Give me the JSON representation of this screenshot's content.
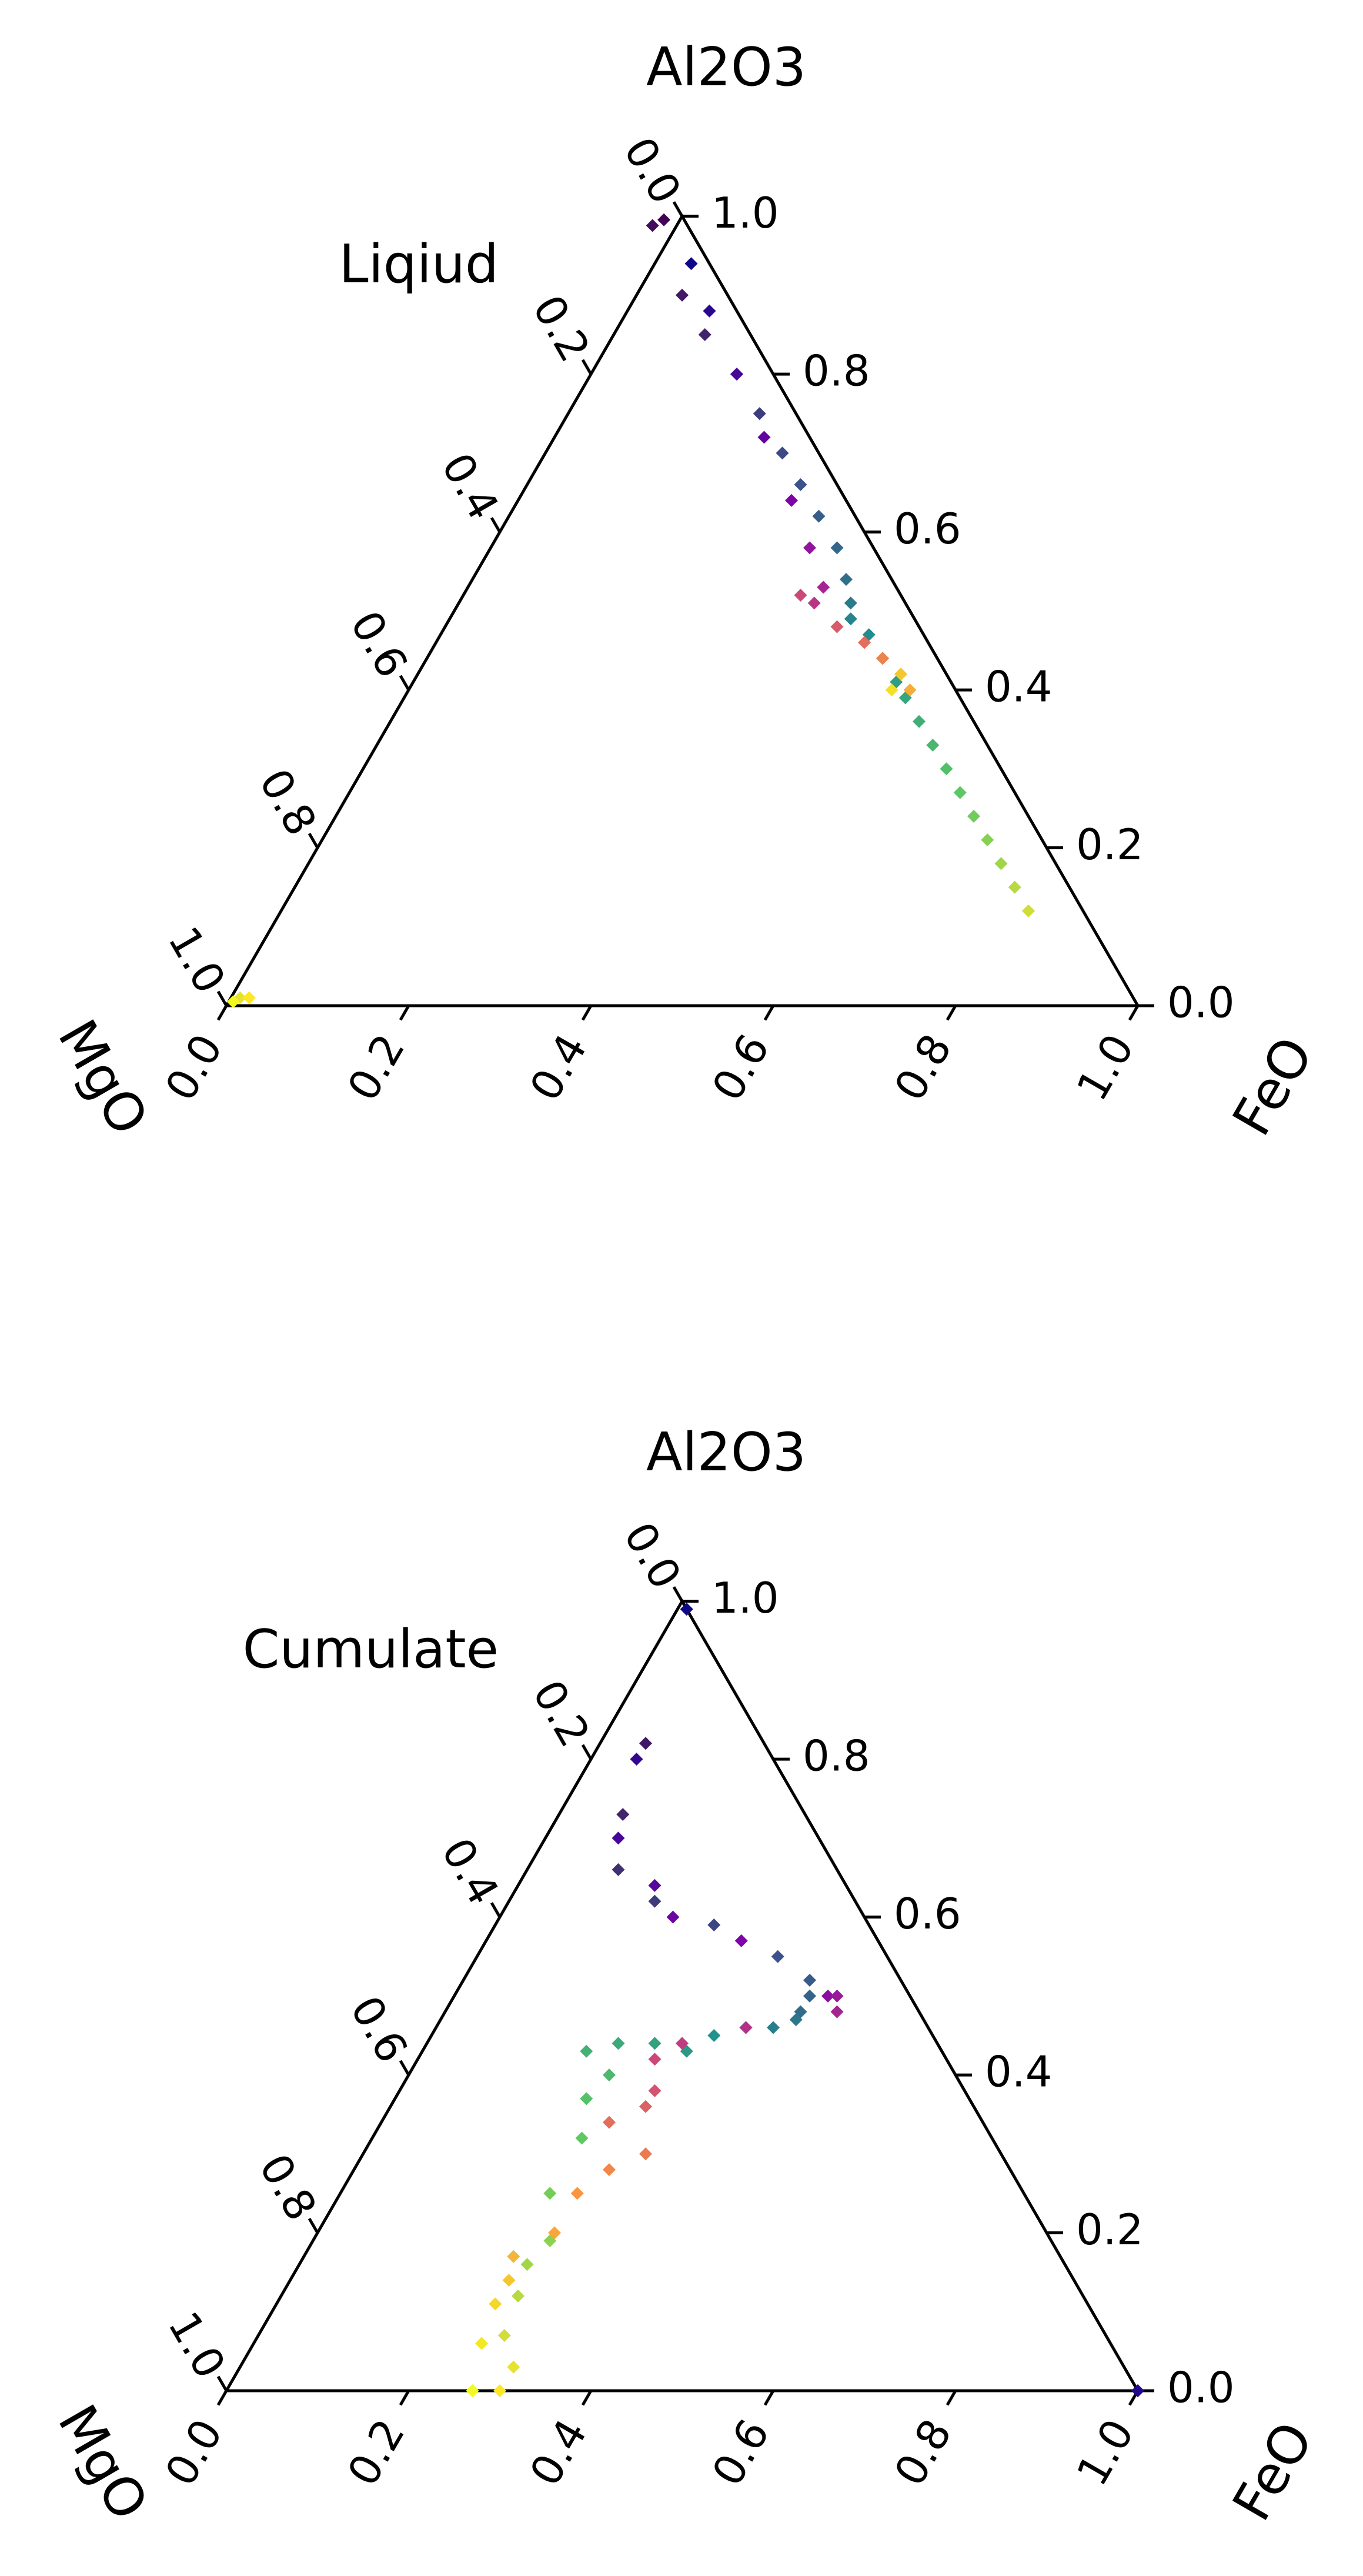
{
  "chart_data": [
    {
      "type": "scatter",
      "title": "Al2O3",
      "annotation": "Liqiud",
      "axis_labels": {
        "top": "Al2O3",
        "left": "MgO",
        "right": "FeO"
      },
      "tick_labels": [
        "0.0",
        "0.2",
        "0.4",
        "0.6",
        "0.8",
        "1.0"
      ],
      "colormaps": [
        "viridis",
        "plasma"
      ],
      "series": [
        {
          "colormap": "viridis",
          "points": [
            [
              0.01,
              0.97,
              0.0
            ],
            [
              0.02,
              0.95,
              0.0
            ],
            [
              0.05,
              0.9,
              0.05
            ],
            [
              0.05,
              0.85,
              0.1
            ],
            [
              0.04,
              0.8,
              0.16
            ],
            [
              0.04,
              0.75,
              0.21
            ],
            [
              0.04,
              0.7,
              0.26
            ],
            [
              0.04,
              0.66,
              0.3
            ],
            [
              0.04,
              0.62,
              0.34
            ],
            [
              0.04,
              0.58,
              0.38
            ],
            [
              0.05,
              0.54,
              0.41
            ],
            [
              0.06,
              0.51,
              0.43
            ],
            [
              0.07,
              0.49,
              0.44
            ],
            [
              0.06,
              0.47,
              0.47
            ],
            [
              0.06,
              0.44,
              0.5
            ],
            [
              0.06,
              0.41,
              0.53
            ],
            [
              0.06,
              0.39,
              0.55
            ],
            [
              0.06,
              0.36,
              0.58
            ],
            [
              0.06,
              0.33,
              0.61
            ],
            [
              0.06,
              0.3,
              0.64
            ],
            [
              0.06,
              0.27,
              0.67
            ],
            [
              0.06,
              0.24,
              0.7
            ],
            [
              0.06,
              0.21,
              0.73
            ],
            [
              0.06,
              0.18,
              0.76
            ],
            [
              0.06,
              0.15,
              0.79
            ],
            [
              0.06,
              0.12,
              0.82
            ],
            [
              0.98,
              0.01,
              0.01
            ],
            [
              0.97,
              0.01,
              0.02
            ]
          ]
        },
        {
          "colormap": "plasma",
          "points": [
            [
              0.02,
              0.94,
              0.04
            ],
            [
              0.03,
              0.88,
              0.09
            ],
            [
              0.04,
              0.8,
              0.16
            ],
            [
              0.05,
              0.72,
              0.23
            ],
            [
              0.06,
              0.64,
              0.3
            ],
            [
              0.07,
              0.58,
              0.35
            ],
            [
              0.08,
              0.53,
              0.39
            ],
            [
              0.1,
              0.51,
              0.39
            ],
            [
              0.11,
              0.52,
              0.37
            ],
            [
              0.09,
              0.48,
              0.43
            ],
            [
              0.07,
              0.46,
              0.47
            ],
            [
              0.06,
              0.44,
              0.5
            ],
            [
              0.05,
              0.42,
              0.53
            ],
            [
              0.05,
              0.4,
              0.55
            ],
            [
              0.05,
              0.42,
              0.53
            ],
            [
              0.07,
              0.4,
              0.53
            ],
            [
              0.99,
              0.005,
              0.005
            ]
          ]
        }
      ]
    },
    {
      "type": "scatter",
      "title": "Al2O3",
      "annotation": "Cumulate",
      "axis_labels": {
        "top": "Al2O3",
        "left": "MgO",
        "right": "FeO"
      },
      "tick_labels": [
        "0.0",
        "0.2",
        "0.4",
        "0.6",
        "0.8",
        "1.0"
      ],
      "colormaps": [
        "viridis",
        "plasma"
      ],
      "series": [
        {
          "colormap": "viridis",
          "points": [
            [
              0.0,
              0.99,
              0.01
            ],
            [
              0.0,
              0.0,
              1.0
            ],
            [
              0.13,
              0.82,
              0.05
            ],
            [
              0.2,
              0.73,
              0.07
            ],
            [
              0.24,
              0.66,
              0.1
            ],
            [
              0.22,
              0.62,
              0.16
            ],
            [
              0.17,
              0.59,
              0.24
            ],
            [
              0.12,
              0.55,
              0.33
            ],
            [
              0.1,
              0.52,
              0.38
            ],
            [
              0.11,
              0.5,
              0.39
            ],
            [
              0.13,
              0.48,
              0.39
            ],
            [
              0.14,
              0.47,
              0.39
            ],
            [
              0.17,
              0.46,
              0.37
            ],
            [
              0.2,
              0.46,
              0.34
            ],
            [
              0.24,
              0.45,
              0.31
            ],
            [
              0.28,
              0.43,
              0.29
            ],
            [
              0.31,
              0.44,
              0.25
            ],
            [
              0.35,
              0.44,
              0.21
            ],
            [
              0.39,
              0.43,
              0.18
            ],
            [
              0.38,
              0.4,
              0.22
            ],
            [
              0.42,
              0.37,
              0.21
            ],
            [
              0.45,
              0.32,
              0.23
            ],
            [
              0.52,
              0.25,
              0.23
            ],
            [
              0.55,
              0.19,
              0.26
            ],
            [
              0.59,
              0.16,
              0.25
            ],
            [
              0.62,
              0.12,
              0.26
            ],
            [
              0.66,
              0.07,
              0.27
            ],
            [
              0.67,
              0.03,
              0.3
            ],
            [
              0.7,
              0.0,
              0.3
            ]
          ]
        },
        {
          "colormap": "plasma",
          "points": [
            [
              0.0,
              0.99,
              0.01
            ],
            [
              0.0,
              0.0,
              1.0
            ],
            [
              0.15,
              0.8,
              0.05
            ],
            [
              0.22,
              0.7,
              0.08
            ],
            [
              0.21,
              0.64,
              0.15
            ],
            [
              0.21,
              0.6,
              0.19
            ],
            [
              0.15,
              0.57,
              0.28
            ],
            [
              0.09,
              0.5,
              0.41
            ],
            [
              0.08,
              0.5,
              0.42
            ],
            [
              0.09,
              0.48,
              0.43
            ],
            [
              0.2,
              0.46,
              0.34
            ],
            [
              0.28,
              0.44,
              0.28
            ],
            [
              0.32,
              0.42,
              0.26
            ],
            [
              0.34,
              0.38,
              0.28
            ],
            [
              0.36,
              0.36,
              0.28
            ],
            [
              0.41,
              0.34,
              0.25
            ],
            [
              0.39,
              0.3,
              0.31
            ],
            [
              0.44,
              0.28,
              0.28
            ],
            [
              0.49,
              0.25,
              0.26
            ],
            [
              0.54,
              0.2,
              0.26
            ],
            [
              0.6,
              0.17,
              0.23
            ],
            [
              0.62,
              0.14,
              0.24
            ],
            [
              0.65,
              0.11,
              0.24
            ],
            [
              0.69,
              0.06,
              0.25
            ],
            [
              0.73,
              0.0,
              0.27
            ]
          ]
        }
      ]
    }
  ]
}
